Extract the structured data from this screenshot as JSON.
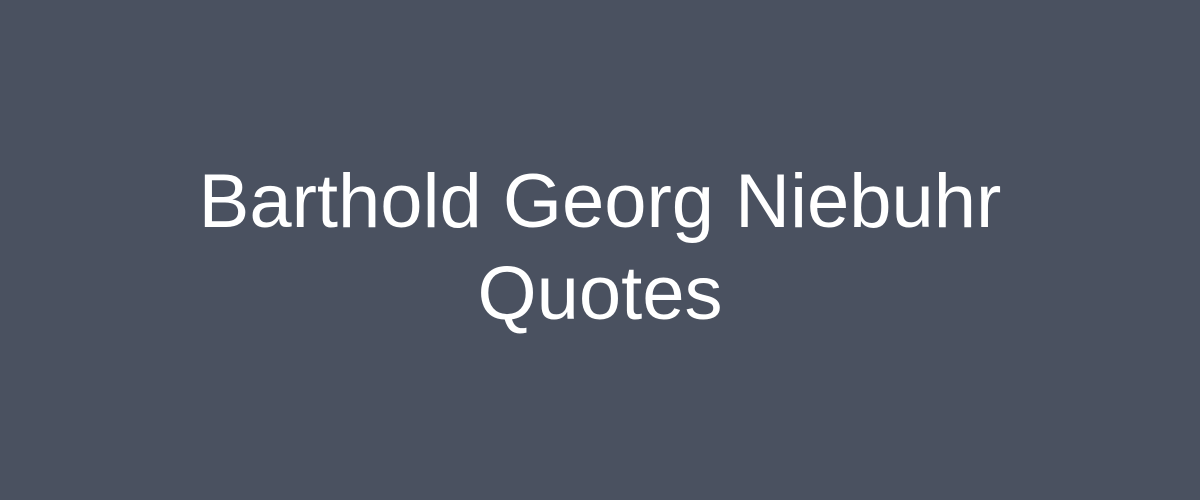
{
  "banner": {
    "title_line_1": "Barthold Georg Niebuhr",
    "title_line_2": "Quotes",
    "background_color": "#4a5160",
    "text_color": "#ffffff"
  }
}
